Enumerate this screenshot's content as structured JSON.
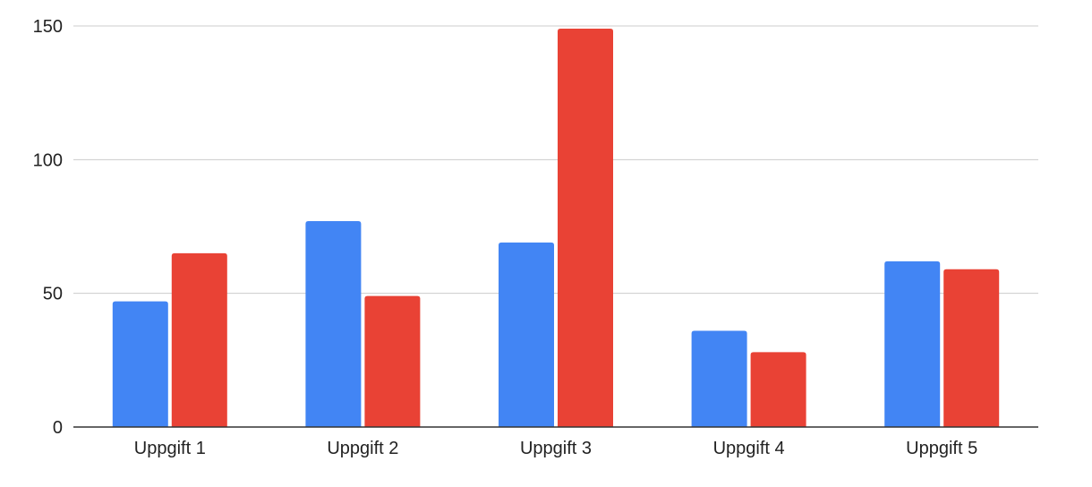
{
  "chart_data": {
    "type": "bar",
    "categories": [
      "Uppgift 1",
      "Uppgift 2",
      "Uppgift 3",
      "Uppgift 4",
      "Uppgift 5"
    ],
    "series": [
      {
        "values": [
          47,
          77,
          69,
          36,
          62
        ],
        "color": "#4285f4"
      },
      {
        "values": [
          65,
          49,
          149,
          28,
          59
        ],
        "color": "#e94235"
      }
    ],
    "y_ticks": [
      0,
      50,
      100,
      150
    ],
    "y_tick_labels": [
      "0",
      "50",
      "100",
      "150"
    ],
    "ylim": [
      0,
      150
    ],
    "grid": true,
    "legend": "none"
  }
}
